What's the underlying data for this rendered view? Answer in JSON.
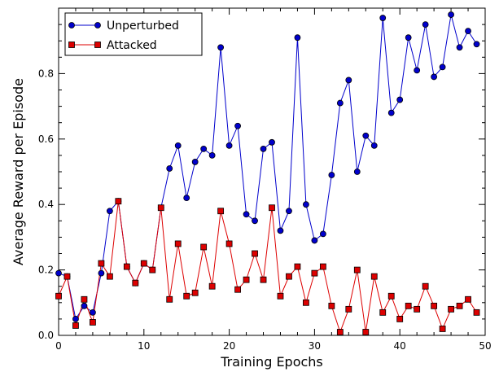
{
  "chart_data": {
    "type": "line",
    "xlabel": "Training Epochs",
    "ylabel": "Average Reward per Episode",
    "xlim": [
      0,
      50
    ],
    "ylim": [
      0,
      1.0
    ],
    "xticks": [
      0,
      10,
      20,
      30,
      40,
      50
    ],
    "yticks": [
      0.0,
      0.2,
      0.4,
      0.6,
      0.8
    ],
    "ytick_labels": [
      "0.0",
      "0.2",
      "0.4",
      "0.6",
      "0.8"
    ],
    "grid": false,
    "legend_position": "top-left",
    "x": [
      0,
      1,
      2,
      3,
      4,
      5,
      6,
      7,
      8,
      9,
      10,
      11,
      12,
      13,
      14,
      15,
      16,
      17,
      18,
      19,
      20,
      21,
      22,
      23,
      24,
      25,
      26,
      27,
      28,
      29,
      30,
      31,
      32,
      33,
      34,
      35,
      36,
      37,
      38,
      39,
      40,
      41,
      42,
      43,
      44,
      45,
      46,
      47,
      48,
      49
    ],
    "series": [
      {
        "name": "Unperturbed",
        "color": "#0000cc",
        "marker": "circle",
        "values": [
          0.19,
          0.18,
          0.05,
          0.09,
          0.07,
          0.19,
          0.38,
          0.41,
          0.21,
          0.16,
          0.22,
          0.2,
          0.39,
          0.51,
          0.58,
          0.42,
          0.53,
          0.57,
          0.55,
          0.88,
          0.58,
          0.64,
          0.37,
          0.35,
          0.57,
          0.59,
          0.32,
          0.38,
          0.91,
          0.4,
          0.29,
          0.31,
          0.49,
          0.71,
          0.78,
          0.5,
          0.61,
          0.58,
          0.97,
          0.68,
          0.72,
          0.91,
          0.81,
          0.95,
          0.79,
          0.82,
          0.98,
          0.88,
          0.93,
          0.89
        ]
      },
      {
        "name": "Attacked",
        "color": "#dd0000",
        "marker": "square",
        "values": [
          0.12,
          0.18,
          0.03,
          0.11,
          0.04,
          0.22,
          0.18,
          0.41,
          0.21,
          0.16,
          0.22,
          0.2,
          0.39,
          0.11,
          0.28,
          0.12,
          0.13,
          0.27,
          0.15,
          0.38,
          0.28,
          0.14,
          0.17,
          0.25,
          0.17,
          0.39,
          0.12,
          0.18,
          0.21,
          0.1,
          0.19,
          0.21,
          0.09,
          0.01,
          0.08,
          0.2,
          0.01,
          0.18,
          0.07,
          0.12,
          0.05,
          0.09,
          0.08,
          0.15,
          0.09,
          0.02,
          0.08,
          0.09,
          0.11,
          0.07
        ]
      }
    ]
  }
}
